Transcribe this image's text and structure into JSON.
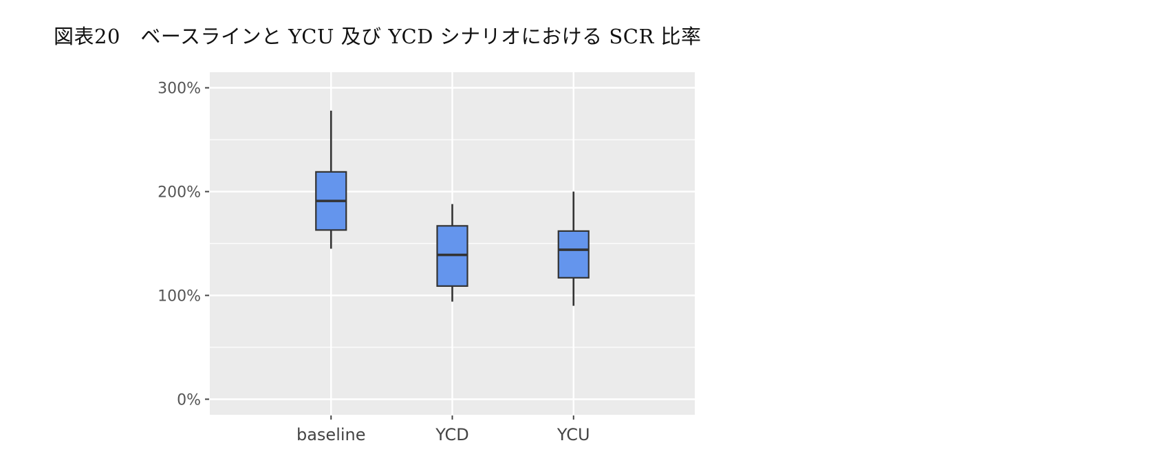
{
  "figure": {
    "caption": "図表20　ベースラインと YCU 及び YCD シナリオにおける SCR 比率"
  },
  "chart_data": {
    "type": "boxplot",
    "title": "",
    "xlabel": "",
    "ylabel": "",
    "categories": [
      "baseline",
      "YCD",
      "YCU"
    ],
    "boxes": [
      {
        "category": "baseline",
        "min": 145,
        "q1": 163,
        "median": 191,
        "q3": 219,
        "max": 278
      },
      {
        "category": "YCD",
        "min": 94,
        "q1": 109,
        "median": 139,
        "q3": 167,
        "max": 188
      },
      {
        "category": "YCU",
        "min": 90,
        "q1": 117,
        "median": 144,
        "q3": 162,
        "max": 200
      }
    ],
    "ylim": [
      -15,
      315
    ],
    "yticks": [
      0,
      100,
      200,
      300
    ],
    "ytick_labels": [
      "0%",
      "100%",
      "200%",
      "300%"
    ],
    "grid": true,
    "colors": {
      "box_fill": "#6495ED",
      "box_stroke": "#333333",
      "panel_bg": "#EBEBEB",
      "grid": "#FFFFFF"
    }
  }
}
